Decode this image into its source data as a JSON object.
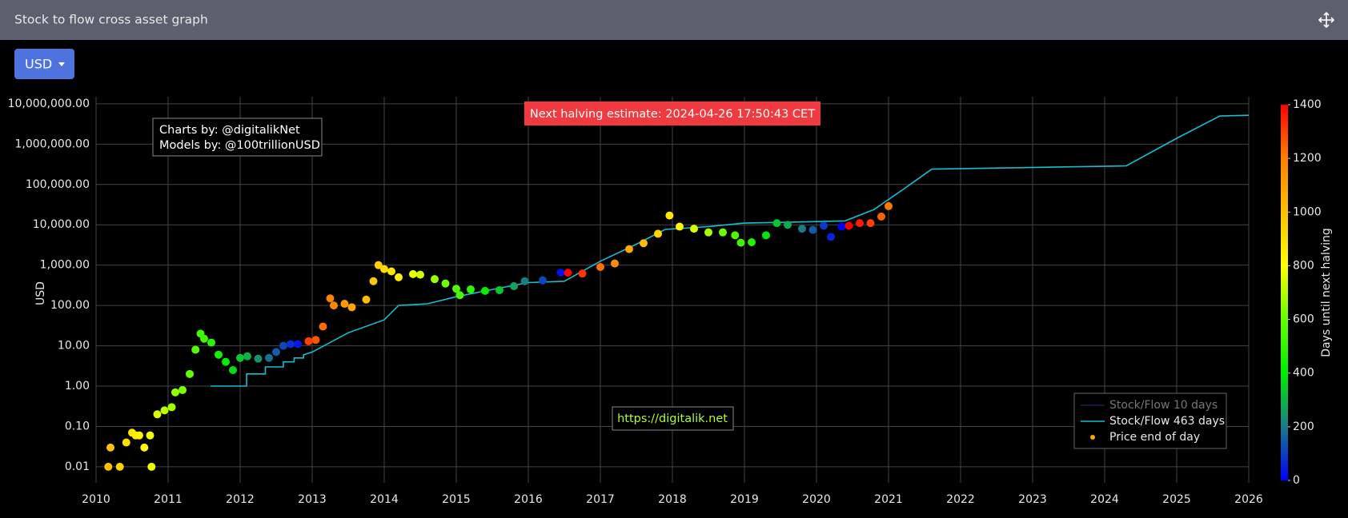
{
  "header": {
    "title": "Stock to flow cross asset graph",
    "currency_button": "USD"
  },
  "chart_data": {
    "type": "scatter",
    "y_label": "USD",
    "log_y": true,
    "grid": true,
    "xlim": [
      2010,
      2026
    ],
    "xticks": [
      2010,
      2011,
      2012,
      2013,
      2014,
      2015,
      2016,
      2017,
      2018,
      2019,
      2020,
      2021,
      2022,
      2023,
      2024,
      2025,
      2026
    ],
    "ylim": [
      0.004,
      15000000
    ],
    "yticks": [
      0.01,
      {
        "value": 0.1,
        "label": "0.10"
      },
      {
        "value": 1,
        "label": "1.00"
      },
      {
        "value": 10,
        "label": "10.00"
      },
      {
        "value": 100,
        "label": "100.00"
      },
      {
        "value": 1000,
        "label": "1,000.00"
      },
      {
        "value": 10000,
        "label": "10,000.00"
      },
      {
        "value": 100000,
        "label": "100,000.00"
      },
      {
        "value": 1000000,
        "label": "1,000,000.00"
      },
      {
        "value": 10000000,
        "label": "10,000,000.00"
      }
    ],
    "legend": "bottom-right",
    "annotations": [
      "Next halving estimate: 2024-04-26 17:50:43 CET",
      "Charts by: @digitalikNet",
      "Models by: @100trillionUSD",
      "https://digitalik.net"
    ],
    "colorbar": {
      "title": "Days until next halving",
      "clim": [
        0,
        1400
      ],
      "ticks": [
        0,
        200,
        400,
        600,
        800,
        1000,
        1200,
        1400
      ],
      "colorscale": [
        [
          0,
          "#0000ff"
        ],
        [
          200,
          "#1a7a8a"
        ],
        [
          400,
          "#00ee00"
        ],
        [
          600,
          "#66ff00"
        ],
        [
          800,
          "#ffff00"
        ],
        [
          1000,
          "#ffc000"
        ],
        [
          1200,
          "#ff7f00"
        ],
        [
          1400,
          "#ff0000"
        ]
      ]
    },
    "series": [
      {
        "name": "Stock/Flow 10 days",
        "type": "line",
        "color": "#3a3f9a",
        "visible": false,
        "x": [],
        "values": []
      },
      {
        "name": "Stock/Flow 463 days",
        "type": "line",
        "color": "#17becf",
        "visible": true,
        "x": [
          2011.59,
          2012.09,
          2012.09,
          2012.35,
          2012.35,
          2012.6,
          2012.6,
          2012.75,
          2012.75,
          2012.88,
          2012.88,
          2013.0,
          2013.5,
          2014.0,
          2014.2,
          2014.6,
          2015.0,
          2015.5,
          2016.0,
          2016.5,
          2017.0,
          2017.5,
          2017.9,
          2018.5,
          2019.0,
          2019.5,
          2020.0,
          2020.4,
          2020.8,
          2021.2,
          2021.6,
          2024.3,
          2025.0,
          2025.6,
          2026.0
        ],
        "values": [
          1,
          1,
          2,
          2,
          3,
          3,
          4,
          4,
          5,
          5,
          6,
          7,
          21,
          44,
          100,
          110,
          165,
          250,
          370,
          400,
          1250,
          3300,
          7700,
          9000,
          11000,
          11500,
          12000,
          12500,
          24000,
          75000,
          240000,
          290000,
          1400000,
          5000000,
          5200000
        ]
      },
      {
        "name": "Price end of day",
        "type": "scatter",
        "color": "#ffa500",
        "visible": true,
        "x": [
          2010.17,
          2010.2,
          2010.33,
          2010.42,
          2010.5,
          2010.55,
          2010.6,
          2010.67,
          2010.75,
          2010.77,
          2010.85,
          2010.95,
          2011.05,
          2011.1,
          2011.2,
          2011.3,
          2011.38,
          2011.45,
          2011.5,
          2011.6,
          2011.7,
          2011.8,
          2011.9,
          2012.0,
          2012.1,
          2012.25,
          2012.4,
          2012.5,
          2012.6,
          2012.7,
          2012.8,
          2012.95,
          2013.05,
          2013.15,
          2013.25,
          2013.3,
          2013.45,
          2013.55,
          2013.75,
          2013.85,
          2013.92,
          2014.0,
          2014.1,
          2014.2,
          2014.4,
          2014.5,
          2014.7,
          2014.85,
          2015.0,
          2015.05,
          2015.2,
          2015.4,
          2015.6,
          2015.8,
          2015.95,
          2016.2,
          2016.45,
          2016.55,
          2016.75,
          2017.0,
          2017.2,
          2017.4,
          2017.6,
          2017.8,
          2017.96,
          2018.1,
          2018.3,
          2018.5,
          2018.7,
          2018.87,
          2018.95,
          2019.1,
          2019.3,
          2019.45,
          2019.6,
          2019.8,
          2019.95,
          2020.1,
          2020.2,
          2020.35,
          2020.45,
          2020.6,
          2020.75,
          2020.9,
          2021.0
        ],
        "values": [
          0.01,
          0.03,
          0.01,
          0.04,
          0.07,
          0.06,
          0.06,
          0.03,
          0.06,
          0.01,
          0.2,
          0.25,
          0.3,
          0.7,
          0.8,
          2,
          8,
          20,
          15,
          12,
          6,
          4,
          2.5,
          5,
          5.5,
          4.8,
          5,
          7,
          10,
          11,
          11,
          13,
          14,
          30,
          150,
          100,
          110,
          90,
          140,
          400,
          1000,
          800,
          700,
          500,
          600,
          580,
          450,
          350,
          260,
          180,
          250,
          230,
          240,
          300,
          400,
          420,
          650,
          650,
          620,
          900,
          1100,
          2500,
          3500,
          6000,
          17000,
          9000,
          8000,
          6500,
          6500,
          5500,
          3600,
          3700,
          5500,
          11000,
          10000,
          8000,
          7500,
          9500,
          5000,
          9000,
          9500,
          11000,
          11000,
          16000,
          29000
        ],
        "color_values": [
          1000,
          989,
          942,
          909,
          880,
          861,
          843,
          818,
          788,
          781,
          752,
          715,
          679,
          661,
          624,
          588,
          558,
          533,
          515,
          478,
          442,
          405,
          369,
          332,
          296,
          241,
          186,
          150,
          113,
          77,
          40,
          1303,
          1266,
          1230,
          1193,
          1175,
          1120,
          1084,
          1011,
          974,
          949,
          920,
          883,
          847,
          774,
          737,
          668,
          613,
          555,
          537,
          482,
          409,
          336,
          263,
          208,
          117,
          26,
          1391,
          1318,
          1223,
          1150,
          1077,
          1004,
          931,
          872,
          821,
          748,
          679,
          606,
          544,
          515,
          460,
          387,
          332,
          277,
          204,
          150,
          95,
          58,
          4,
          1413,
          1358,
          1303,
          1248,
          1212
        ]
      }
    ]
  }
}
